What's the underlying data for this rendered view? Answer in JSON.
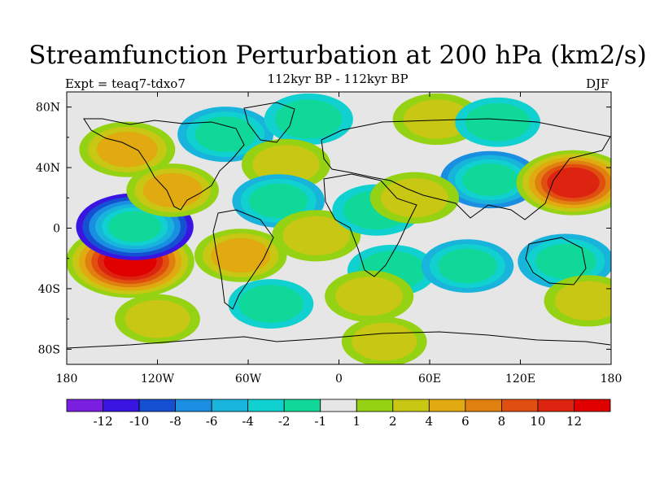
{
  "title": "Streamfunction Perturbation at 200 hPa (km2/s)",
  "subtitle": "112kyr BP - 112kyr BP",
  "experiment": "Expt = teaq7-tdxo7",
  "season": "DJF",
  "lat_labels": [
    "80N",
    "40N",
    "0",
    "40S",
    "80S"
  ],
  "lon_labels": [
    "180",
    "120W",
    "60W",
    "0",
    "60E",
    "120E",
    "180"
  ],
  "colorbar": {
    "labels": [
      "-12",
      "-10",
      "-8",
      "-6",
      "-4",
      "-2",
      "-1",
      "1",
      "2",
      "4",
      "6",
      "8",
      "10",
      "12"
    ],
    "colors": [
      "#7a1ee0",
      "#3a14e0",
      "#1650d2",
      "#1a8ee0",
      "#18b4dc",
      "#10d0d0",
      "#10d898",
      "#e6e6e6",
      "#96d214",
      "#c8c814",
      "#e0aa10",
      "#e08010",
      "#e04e10",
      "#dc2410",
      "#e00000"
    ]
  },
  "blobs": [
    {
      "lon": -138,
      "lat": -22,
      "value": 14
    },
    {
      "lon": -135,
      "lat": 1,
      "value": -11
    },
    {
      "lon": -140,
      "lat": 52,
      "value": 5
    },
    {
      "lon": -110,
      "lat": 25,
      "value": 4
    },
    {
      "lon": -75,
      "lat": 62,
      "value": -5
    },
    {
      "lon": -20,
      "lat": 72,
      "value": -3
    },
    {
      "lon": -35,
      "lat": 42,
      "value": 3
    },
    {
      "lon": -40,
      "lat": 18,
      "value": -4
    },
    {
      "lon": -65,
      "lat": -18,
      "value": 4
    },
    {
      "lon": -15,
      "lat": -5,
      "value": 3
    },
    {
      "lon": 25,
      "lat": 12,
      "value": -3
    },
    {
      "lon": 65,
      "lat": 72,
      "value": 3
    },
    {
      "lon": 105,
      "lat": 70,
      "value": -2
    },
    {
      "lon": 100,
      "lat": 32,
      "value": -6
    },
    {
      "lon": 50,
      "lat": 20,
      "value": 3
    },
    {
      "lon": 155,
      "lat": 30,
      "value": 10
    },
    {
      "lon": 35,
      "lat": -28,
      "value": -3
    },
    {
      "lon": 85,
      "lat": -25,
      "value": -4
    },
    {
      "lon": 150,
      "lat": -22,
      "value": -5
    },
    {
      "lon": 20,
      "lat": -45,
      "value": 3
    },
    {
      "lon": 165,
      "lat": -48,
      "value": 3
    },
    {
      "lon": -45,
      "lat": -50,
      "value": -2
    },
    {
      "lon": -120,
      "lat": -60,
      "value": 2
    },
    {
      "lon": 30,
      "lat": -75,
      "value": 2
    }
  ]
}
